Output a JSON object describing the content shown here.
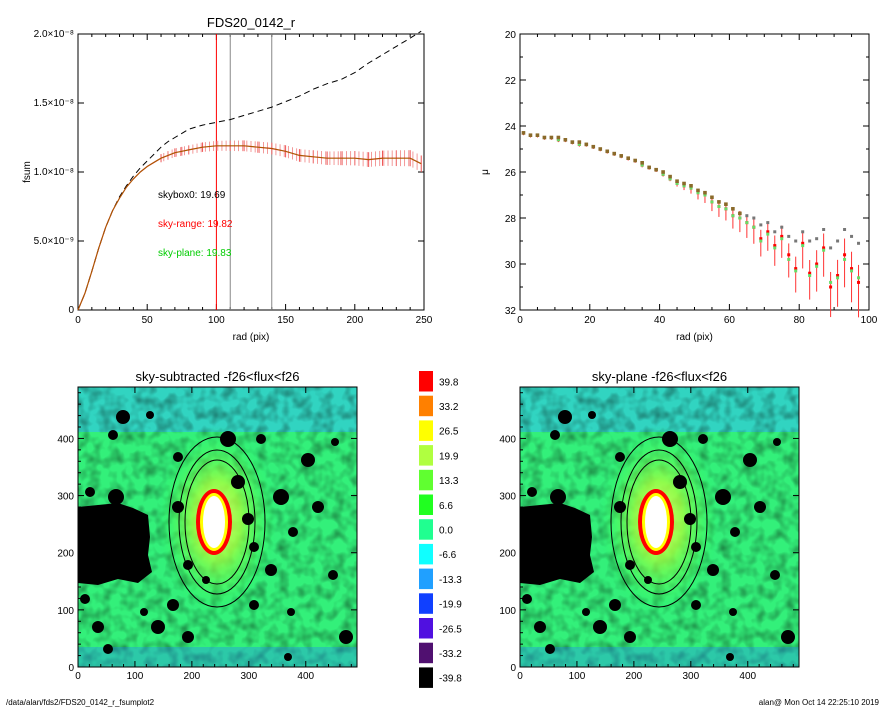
{
  "footer": {
    "left": "/data/alan/fds2/FDS20_0142_r_fsumplot2",
    "right": "alan@  Mon Oct 14 22:25:10 2019"
  },
  "chart_data": [
    {
      "type": "line",
      "title": "FDS20_0142_r",
      "xlabel": "rad (pix)",
      "ylabel": "fsum",
      "xlim": [
        0,
        250
      ],
      "ylim": [
        0,
        2e-08
      ],
      "xticks": [
        "0",
        "50",
        "100",
        "150",
        "200",
        "250"
      ],
      "yticks": [
        "0",
        "5.0×10⁻⁹",
        "1.0×10⁻⁸",
        "1.5×10⁻⁸",
        "2.0×10⁻⁸"
      ],
      "vlines": [
        {
          "x": 100,
          "color": "#ff0000"
        },
        {
          "x": 110,
          "color": "#888888"
        },
        {
          "x": 140,
          "color": "#888888"
        }
      ],
      "annotations": [
        {
          "text": "skybox0: 19.69",
          "color": "#000000"
        },
        {
          "text": "sky-range: 19.82",
          "color": "#ff0000"
        },
        {
          "text": "sky-plane: 19.83",
          "color": "#00cc00"
        }
      ],
      "series": [
        {
          "style": "dashed",
          "color": "#000000",
          "x": [
            0,
            5,
            10,
            15,
            20,
            25,
            30,
            35,
            40,
            45,
            50,
            55,
            60,
            65,
            70,
            75,
            80,
            90,
            100,
            110,
            120,
            130,
            140,
            150,
            160,
            170,
            180,
            190,
            200,
            210,
            220,
            230,
            240,
            248
          ],
          "y": [
            0,
            1.2e-09,
            2.8e-09,
            4.5e-09,
            6e-09,
            7.2e-09,
            8.2e-09,
            9e-09,
            9.7e-09,
            1.03e-08,
            1.08e-08,
            1.13e-08,
            1.18e-08,
            1.22e-08,
            1.25e-08,
            1.28e-08,
            1.31e-08,
            1.34e-08,
            1.36e-08,
            1.38e-08,
            1.41e-08,
            1.44e-08,
            1.47e-08,
            1.51e-08,
            1.55e-08,
            1.6e-08,
            1.64e-08,
            1.67e-08,
            1.72e-08,
            1.79e-08,
            1.85e-08,
            1.91e-08,
            1.97e-08,
            2.02e-08
          ]
        },
        {
          "style": "solid",
          "color": "#cc0000",
          "x": [
            0,
            5,
            10,
            15,
            20,
            25,
            30,
            35,
            40,
            45,
            50,
            55,
            60,
            65,
            70,
            75,
            80,
            90,
            100,
            110,
            120,
            130,
            140,
            150,
            160,
            170,
            180,
            190,
            200,
            210,
            220,
            230,
            240,
            248
          ],
          "y": [
            0,
            1.2e-09,
            2.8e-09,
            4.5e-09,
            6e-09,
            7.2e-09,
            8.1e-09,
            8.9e-09,
            9.5e-09,
            1e-08,
            1.04e-08,
            1.07e-08,
            1.1e-08,
            1.12e-08,
            1.14e-08,
            1.15e-08,
            1.16e-08,
            1.18e-08,
            1.19e-08,
            1.19e-08,
            1.19e-08,
            1.18e-08,
            1.17e-08,
            1.15e-08,
            1.12e-08,
            1.11e-08,
            1.1e-08,
            1.1e-08,
            1.1e-08,
            1.09e-08,
            1.1e-08,
            1.1e-08,
            1.1e-08,
            1.06e-08
          ]
        }
      ]
    },
    {
      "type": "scatter",
      "xlabel": "rad (pix)",
      "ylabel": "μ",
      "xlim": [
        0,
        100
      ],
      "ylim": [
        32,
        20
      ],
      "xticks": [
        "0",
        "20",
        "40",
        "60",
        "80",
        "100"
      ],
      "yticks": [
        "20",
        "22",
        "24",
        "26",
        "28",
        "30",
        "32"
      ],
      "series": [
        {
          "color": "#777777",
          "x": [
            1,
            3,
            5,
            7,
            9,
            11,
            13,
            15,
            17,
            19,
            21,
            23,
            25,
            27,
            29,
            31,
            33,
            35,
            37,
            39,
            41,
            43,
            45,
            47,
            49,
            51,
            53,
            55,
            57,
            59,
            61,
            63,
            65,
            67,
            69,
            71,
            73,
            75,
            77,
            79,
            81,
            83,
            85,
            87,
            89,
            91,
            93,
            95,
            97
          ],
          "y": [
            24.3,
            24.4,
            24.4,
            24.5,
            24.5,
            24.5,
            24.6,
            24.7,
            24.7,
            24.8,
            24.9,
            25.0,
            25.1,
            25.2,
            25.3,
            25.4,
            25.5,
            25.6,
            25.8,
            25.9,
            26.0,
            26.2,
            26.4,
            26.5,
            26.6,
            26.8,
            26.9,
            27.1,
            27.3,
            27.4,
            27.6,
            27.8,
            27.9,
            28.0,
            28.3,
            28.2,
            28.6,
            28.4,
            28.8,
            29.0,
            28.6,
            29.0,
            28.9,
            28.5,
            29.3,
            29.0,
            28.5,
            28.8,
            29.1
          ]
        },
        {
          "color": "#ff0000",
          "x": [
            1,
            3,
            5,
            7,
            9,
            11,
            13,
            15,
            17,
            19,
            21,
            23,
            25,
            27,
            29,
            31,
            33,
            35,
            37,
            39,
            41,
            43,
            45,
            47,
            49,
            51,
            53,
            55,
            57,
            59,
            61,
            63,
            65,
            67,
            69,
            71,
            73,
            75,
            77,
            79,
            81,
            83,
            85,
            87,
            89,
            91,
            93,
            95,
            97
          ],
          "y": [
            24.3,
            24.4,
            24.4,
            24.5,
            24.5,
            24.6,
            24.6,
            24.7,
            24.8,
            24.8,
            24.9,
            25.0,
            25.1,
            25.2,
            25.3,
            25.4,
            25.5,
            25.7,
            25.8,
            25.9,
            26.1,
            26.3,
            26.5,
            26.6,
            26.7,
            26.9,
            27.0,
            27.3,
            27.5,
            27.6,
            27.9,
            28.0,
            28.2,
            28.4,
            28.9,
            28.6,
            29.2,
            28.8,
            29.6,
            30.2,
            29.1,
            30.4,
            30.0,
            29.3,
            31.0,
            30.5,
            29.6,
            30.2,
            30.8
          ]
        },
        {
          "color": "#66dd66",
          "x": [
            1,
            3,
            5,
            7,
            9,
            11,
            13,
            15,
            17,
            19,
            21,
            23,
            25,
            27,
            29,
            31,
            33,
            35,
            37,
            39,
            41,
            43,
            45,
            47,
            49,
            51,
            53,
            55,
            57,
            59,
            61,
            63,
            65,
            67,
            69,
            71,
            73,
            75,
            77,
            79,
            81,
            83,
            85,
            87,
            89,
            91,
            93,
            95,
            97
          ],
          "y": [
            24.3,
            24.4,
            24.4,
            24.5,
            24.5,
            24.6,
            24.6,
            24.7,
            24.8,
            24.8,
            24.9,
            25.0,
            25.1,
            25.2,
            25.3,
            25.4,
            25.5,
            25.7,
            25.8,
            25.9,
            26.1,
            26.3,
            26.5,
            26.6,
            26.7,
            26.9,
            27.0,
            27.3,
            27.5,
            27.6,
            27.9,
            28.0,
            28.2,
            28.4,
            29.0,
            28.7,
            29.3,
            28.9,
            29.8,
            30.3,
            29.2,
            30.5,
            30.1,
            29.4,
            30.8,
            30.6,
            29.8,
            30.3,
            30.6
          ]
        }
      ]
    },
    {
      "type": "heatmap",
      "title": "sky-subtracted -f26<flux<f26",
      "xlim": [
        0,
        490
      ],
      "ylim": [
        0,
        490
      ],
      "xticks": [
        "0",
        "100",
        "200",
        "300",
        "400"
      ],
      "yticks": [
        "0",
        "100",
        "200",
        "300",
        "400"
      ]
    },
    {
      "type": "heatmap",
      "title": "sky-plane -f26<flux<f26",
      "xlim": [
        0,
        490
      ],
      "ylim": [
        0,
        490
      ],
      "xticks": [
        "0",
        "100",
        "200",
        "300",
        "400"
      ],
      "yticks": [
        "0",
        "100",
        "200",
        "300",
        "400"
      ]
    }
  ],
  "colorbar": {
    "labels": [
      "39.8",
      "33.2",
      "26.5",
      "19.9",
      "13.3",
      "6.6",
      "0.0",
      "-6.6",
      "-13.3",
      "-19.9",
      "-26.5",
      "-33.2",
      "-39.8"
    ],
    "colors": [
      "#ff0000",
      "#ff8000",
      "#ffff00",
      "#b0ff40",
      "#60ff30",
      "#20ff20",
      "#20ff90",
      "#10ffff",
      "#20a0ff",
      "#1040ff",
      "#5010e0",
      "#501070",
      "#000000"
    ]
  }
}
